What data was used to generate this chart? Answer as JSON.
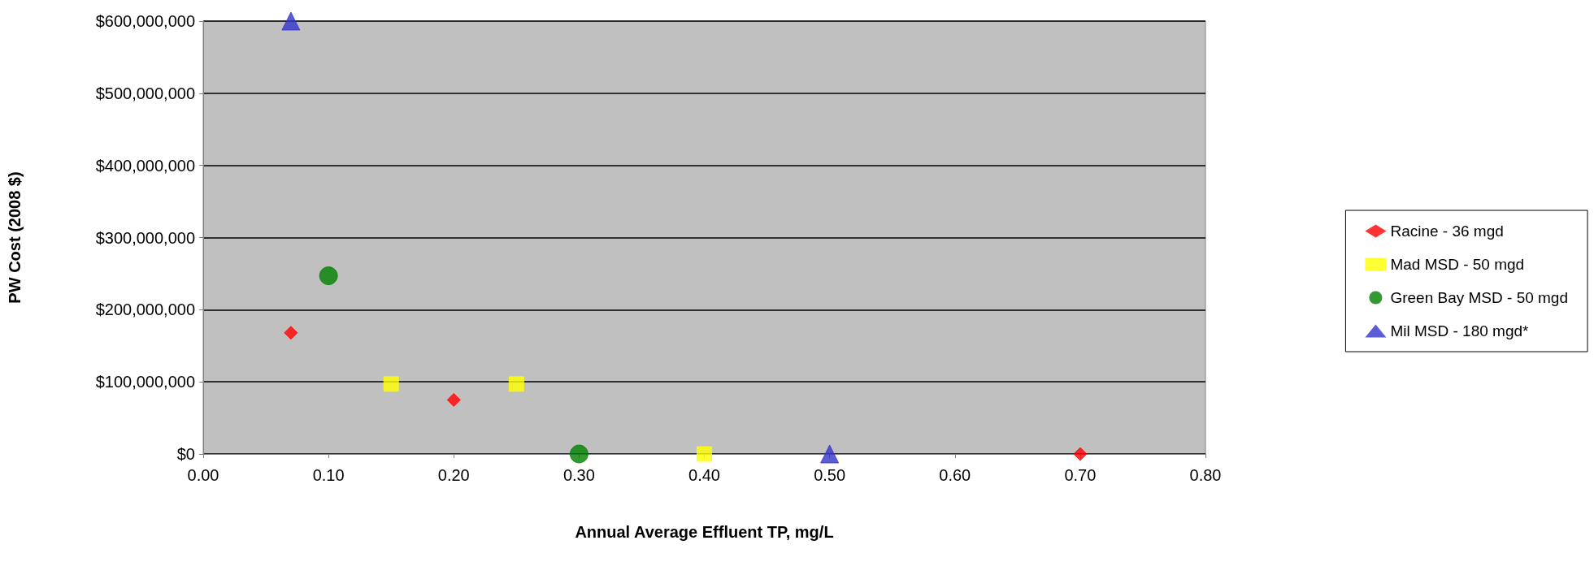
{
  "chart_data": {
    "type": "scatter",
    "xlabel": "Annual Average Effluent TP, mg/L",
    "ylabel": "PW Cost (2008 $)",
    "series": [
      {
        "name": "Racine - 36 mgd",
        "color": "#ff0000",
        "marker": "diamond",
        "x": [
          0.07,
          0.2,
          0.7
        ],
        "values": [
          168000000,
          75000000,
          0
        ]
      },
      {
        "name": "Mad MSD - 50 mgd",
        "color": "#ffff00",
        "marker": "square",
        "x": [
          0.15,
          0.25,
          0.4
        ],
        "values": [
          97000000,
          97000000,
          0
        ]
      },
      {
        "name": "Green Bay MSD - 50 mgd",
        "color": "#008000",
        "marker": "circle",
        "x": [
          0.1,
          0.3
        ],
        "values": [
          247000000,
          0
        ]
      },
      {
        "name": "Mil MSD - 180 mgd*",
        "color": "#3333cc",
        "marker": "triangle",
        "x": [
          0.07,
          0.5
        ],
        "values": [
          600000000,
          0
        ]
      }
    ],
    "xlim": [
      0,
      0.8
    ],
    "xticks": [
      {
        "value": 0,
        "label": "0.00"
      },
      {
        "value": 0.1,
        "label": "0.10"
      },
      {
        "value": 0.2,
        "label": "0.20"
      },
      {
        "value": 0.3,
        "label": "0.30"
      },
      {
        "value": 0.4,
        "label": "0.40"
      },
      {
        "value": 0.5,
        "label": "0.50"
      },
      {
        "value": 0.6,
        "label": "0.60"
      },
      {
        "value": 0.7,
        "label": "0.70"
      },
      {
        "value": 0.8,
        "label": "0.80"
      }
    ],
    "ylim": [
      0,
      600000000
    ],
    "yticks": [
      {
        "value": 0,
        "label": "$0"
      },
      {
        "value": 100000000,
        "label": "$100,000,000"
      },
      {
        "value": 200000000,
        "label": "$200,000,000"
      },
      {
        "value": 300000000,
        "label": "$300,000,000"
      },
      {
        "value": 400000000,
        "label": "$400,000,000"
      },
      {
        "value": 500000000,
        "label": "$500,000,000"
      },
      {
        "value": 600000000,
        "label": "$600,000,000"
      }
    ],
    "grid": "y",
    "legend": "right"
  }
}
